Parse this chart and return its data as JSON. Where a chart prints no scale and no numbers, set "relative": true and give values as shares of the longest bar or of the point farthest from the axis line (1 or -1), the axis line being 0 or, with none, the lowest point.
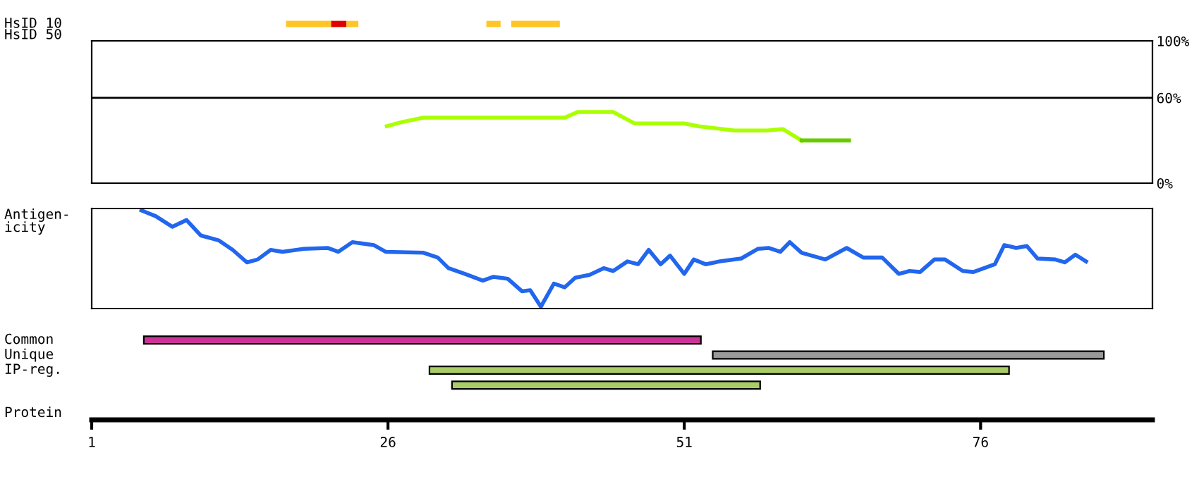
{
  "chart_data": [
    {
      "type": "bar",
      "orientation": "horizontal",
      "categories": [
        "HsID 10",
        "HsID 50"
      ],
      "xlim": [
        1,
        90.5
      ],
      "tick_labels": "y",
      "series": [
        {
          "color": "#ffc526",
          "values": [
            3.8,
            null
          ],
          "base": [
            17.4,
            null
          ]
        },
        {
          "color": "#e00000",
          "values": [
            1.3,
            null
          ],
          "base": [
            21.2,
            null
          ]
        },
        {
          "color": "#ffc526",
          "values": [
            1.0,
            null
          ],
          "base": [
            22.5,
            null
          ]
        },
        {
          "color": "#ffc526",
          "values": [
            1.2,
            null
          ],
          "base": [
            34.3,
            null
          ]
        },
        {
          "color": "#ffc526",
          "values": [
            4.1,
            null
          ],
          "base": [
            36.4,
            null
          ]
        }
      ]
    },
    {
      "type": "line",
      "xlim": [
        1,
        90.5
      ],
      "ylim": [
        0,
        100
      ],
      "yticks": [
        {
          "value": 0,
          "label": "0%"
        },
        {
          "value": 60,
          "label": "60%"
        },
        {
          "value": 100,
          "label": "100%"
        }
      ],
      "tick_labels": "y",
      "ref_lines": [
        {
          "axis": "y",
          "value": 60,
          "color": "#000000"
        }
      ],
      "series": [
        {
          "color": "#aaff00",
          "x": [
            25.9,
            27.2,
            29.0,
            40.9,
            42.0,
            45.0,
            46.8,
            51.0,
            52.2,
            55.2,
            58.0,
            59.3,
            60.9
          ],
          "values": [
            40,
            43,
            46,
            46,
            50,
            50,
            42,
            42,
            40,
            37,
            37,
            38,
            30
          ]
        },
        {
          "color": "#66cc00",
          "x": [
            60.9,
            64.9
          ],
          "values": [
            30,
            30
          ]
        }
      ]
    },
    {
      "type": "line",
      "relative": true,
      "ylabel": "Antigen-\nicity",
      "xlim": [
        1,
        90.5
      ],
      "tick_labels": false,
      "series": [
        {
          "color": "#2266ee",
          "x": [
            5.2,
            6.4,
            7.8,
            9.0,
            10.2,
            11.7,
            12.9,
            14.1,
            15.0,
            16.1,
            17.1,
            18.9,
            20.9,
            21.8,
            23.0,
            24.8,
            25.8,
            29.0,
            30.2,
            31.1,
            32.5,
            34.0,
            34.9,
            36.1,
            37.3,
            38.0,
            38.9,
            40.0,
            40.9,
            41.8,
            43.0,
            44.2,
            45.0,
            46.2,
            47.1,
            48.0,
            49.0,
            49.8,
            51.0,
            51.8,
            52.8,
            54.0,
            55.8,
            57.2,
            58.1,
            59.1,
            59.9,
            60.9,
            62.9,
            64.7,
            66.1,
            67.7,
            69.1,
            70.0,
            70.9,
            72.1,
            73.0,
            74.5,
            75.4,
            77.2,
            78.0,
            79.0,
            79.9,
            80.8,
            82.3,
            83.1,
            84.0,
            84.9
          ],
          "values": [
            1.0,
            0.94,
            0.83,
            0.9,
            0.74,
            0.69,
            0.59,
            0.46,
            0.49,
            0.59,
            0.57,
            0.6,
            0.61,
            0.57,
            0.67,
            0.64,
            0.57,
            0.56,
            0.51,
            0.4,
            0.34,
            0.27,
            0.31,
            0.29,
            0.16,
            0.17,
            0.0,
            0.24,
            0.2,
            0.3,
            0.33,
            0.4,
            0.37,
            0.47,
            0.44,
            0.59,
            0.44,
            0.53,
            0.34,
            0.49,
            0.44,
            0.47,
            0.5,
            0.6,
            0.61,
            0.57,
            0.67,
            0.56,
            0.49,
            0.61,
            0.51,
            0.51,
            0.34,
            0.37,
            0.36,
            0.49,
            0.49,
            0.37,
            0.36,
            0.44,
            0.64,
            0.61,
            0.63,
            0.5,
            0.49,
            0.46,
            0.54,
            0.47
          ]
        }
      ]
    },
    {
      "type": "bar",
      "orientation": "horizontal",
      "categories": [
        "Common",
        "Unique",
        "IP-reg.",
        null
      ],
      "xlim": [
        1,
        90.5
      ],
      "xticks": [
        1,
        26,
        51,
        76
      ],
      "xlabel": "Protein",
      "series": [
        {
          "color": "#cc3399",
          "values": [
            47.0,
            null,
            null,
            null
          ],
          "base": [
            5.4,
            null,
            null,
            null
          ]
        },
        {
          "color": "#999999",
          "values": [
            null,
            33.0,
            null,
            null
          ],
          "base": [
            null,
            53.4,
            null,
            null
          ]
        },
        {
          "color": "#aacc66",
          "values": [
            null,
            null,
            48.9,
            26.0
          ],
          "base": [
            null,
            null,
            29.5,
            31.4
          ]
        }
      ]
    }
  ]
}
